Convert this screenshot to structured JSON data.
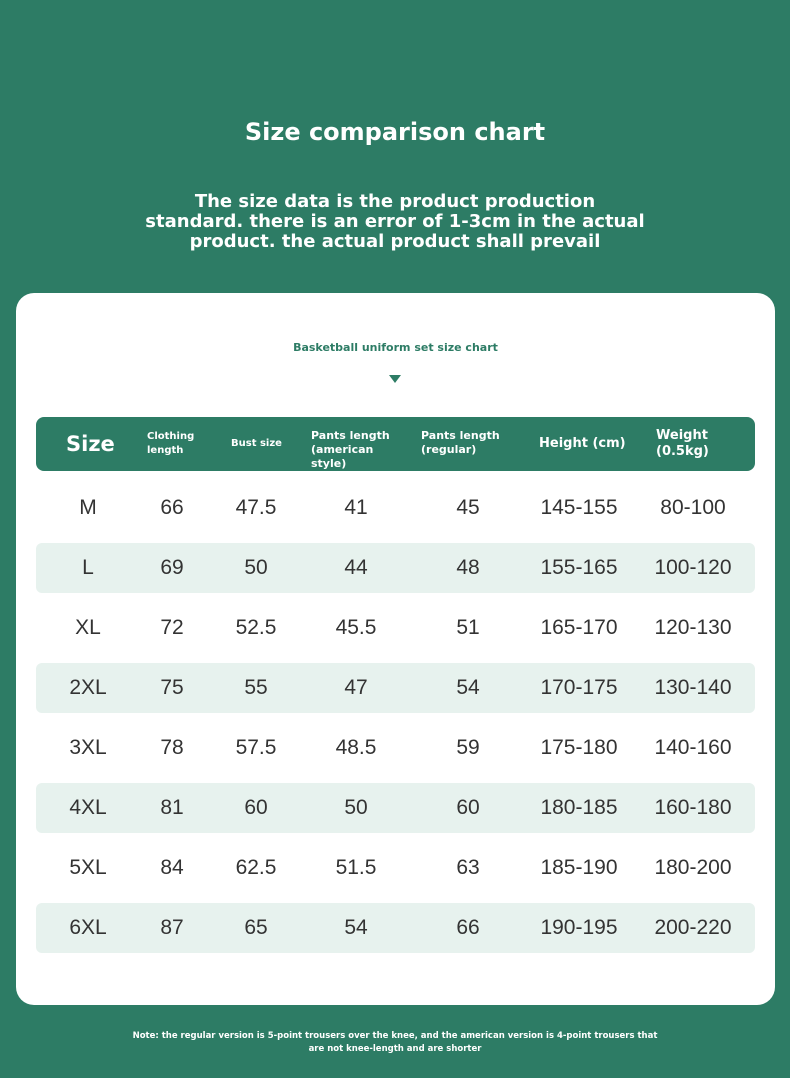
{
  "title": "Size comparison chart",
  "subtitle": "The size data is the product production standard. there is an error of 1-3cm in the actual product. the actual product shall prevail",
  "chart_title": "Basketball uniform set size chart",
  "columns": [
    "Size",
    "Clothing length",
    "Bust size",
    "Pants length (american style)",
    "Pants length (regular)",
    "Height (cm)",
    "Weight (0.5kg)"
  ],
  "rows": [
    [
      "M",
      "66",
      "47.5",
      "41",
      "45",
      "145-155",
      "80-100"
    ],
    [
      "L",
      "69",
      "50",
      "44",
      "48",
      "155-165",
      "100-120"
    ],
    [
      "XL",
      "72",
      "52.5",
      "45.5",
      "51",
      "165-170",
      "120-130"
    ],
    [
      "2XL",
      "75",
      "55",
      "47",
      "54",
      "170-175",
      "130-140"
    ],
    [
      "3XL",
      "78",
      "57.5",
      "48.5",
      "59",
      "175-180",
      "140-160"
    ],
    [
      "4XL",
      "81",
      "60",
      "50",
      "60",
      "180-185",
      "160-180"
    ],
    [
      "5XL",
      "84",
      "62.5",
      "51.5",
      "63",
      "185-190",
      "180-200"
    ],
    [
      "6XL",
      "87",
      "65",
      "54",
      "66",
      "190-195",
      "200-220"
    ]
  ],
  "note": "Note: the regular version is 5-point trousers over the knee, and the american version is 4-point trousers that are not knee-length and are shorter",
  "colors": {
    "brand": "#2d7c65",
    "stripe": "#e7f2ee"
  }
}
